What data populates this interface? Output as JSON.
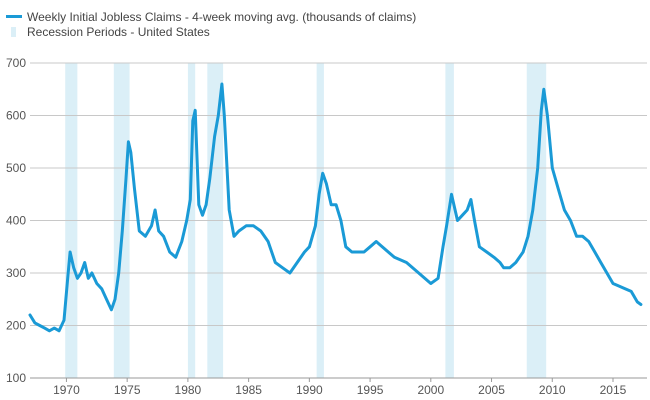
{
  "chart_data": {
    "type": "line",
    "title": "",
    "xlabel": "",
    "ylabel": "",
    "xlim": [
      1967,
      2017.8
    ],
    "ylim": [
      100,
      700
    ],
    "x_ticks": [
      1970,
      1975,
      1980,
      1985,
      1990,
      1995,
      2000,
      2005,
      2010,
      2015
    ],
    "x_tick_labels": [
      "1970",
      "1975",
      "1980",
      "1985",
      "1990",
      "1995",
      "2000",
      "2005",
      "2010",
      "2015"
    ],
    "y_ticks": [
      100,
      200,
      300,
      400,
      500,
      600,
      700
    ],
    "y_tick_labels": [
      "100",
      "200",
      "300",
      "400",
      "500",
      "600",
      "700"
    ],
    "grid": "horizontal",
    "legend_position": "top-left",
    "legend": [
      {
        "label": "Weekly Initial Jobless Claims - 4-week moving avg. (thousands of claims)",
        "kind": "line",
        "color": "#1a9ad6"
      },
      {
        "label": "Recession Periods - United States",
        "kind": "area",
        "color": "#dbeff7"
      }
    ],
    "recessions": [
      {
        "start": 1969.9,
        "end": 1970.9
      },
      {
        "start": 1973.9,
        "end": 1975.2
      },
      {
        "start": 1980.0,
        "end": 1980.6
      },
      {
        "start": 1981.6,
        "end": 1982.9
      },
      {
        "start": 1990.6,
        "end": 1991.2
      },
      {
        "start": 2001.2,
        "end": 2001.9
      },
      {
        "start": 2007.9,
        "end": 2009.5
      }
    ],
    "series": [
      {
        "name": "Weekly Initial Jobless Claims - 4-week moving avg. (thousands of claims)",
        "color": "#1a9ad6",
        "x": [
          1967.0,
          1967.4,
          1967.8,
          1968.2,
          1968.6,
          1969.0,
          1969.4,
          1969.8,
          1970.1,
          1970.3,
          1970.6,
          1970.9,
          1971.2,
          1971.5,
          1971.8,
          1972.1,
          1972.5,
          1972.9,
          1973.3,
          1973.7,
          1974.0,
          1974.3,
          1974.6,
          1974.9,
          1975.1,
          1975.3,
          1975.6,
          1976.0,
          1976.5,
          1977.0,
          1977.3,
          1977.6,
          1978.0,
          1978.5,
          1979.0,
          1979.5,
          1979.9,
          1980.2,
          1980.4,
          1980.6,
          1980.9,
          1981.2,
          1981.5,
          1981.8,
          1982.2,
          1982.5,
          1982.8,
          1983.0,
          1983.4,
          1983.8,
          1984.2,
          1984.8,
          1985.4,
          1986.0,
          1986.6,
          1987.2,
          1987.8,
          1988.4,
          1989.0,
          1989.6,
          1990.0,
          1990.5,
          1990.8,
          1991.1,
          1991.4,
          1991.8,
          1992.2,
          1992.6,
          1993.0,
          1993.5,
          1994.0,
          1994.5,
          1995.0,
          1995.5,
          1996.0,
          1997.0,
          1998.0,
          1999.0,
          2000.0,
          2000.6,
          2001.0,
          2001.3,
          2001.7,
          2001.9,
          2002.2,
          2002.6,
          2003.0,
          2003.3,
          2003.6,
          2004.0,
          2004.6,
          2005.2,
          2005.7,
          2006.0,
          2006.5,
          2007.0,
          2007.6,
          2008.0,
          2008.4,
          2008.8,
          2009.1,
          2009.3,
          2009.6,
          2010.0,
          2010.5,
          2011.0,
          2011.5,
          2012.0,
          2012.5,
          2013.0,
          2013.5,
          2014.0,
          2014.5,
          2015.0,
          2015.5,
          2016.0,
          2016.5,
          2017.0,
          2017.3
        ],
        "values": [
          220,
          205,
          200,
          195,
          190,
          195,
          190,
          210,
          290,
          340,
          310,
          290,
          300,
          320,
          290,
          300,
          280,
          270,
          250,
          230,
          250,
          300,
          380,
          480,
          550,
          530,
          460,
          380,
          370,
          390,
          420,
          380,
          370,
          340,
          330,
          360,
          400,
          440,
          590,
          610,
          430,
          410,
          430,
          480,
          560,
          600,
          660,
          600,
          420,
          370,
          380,
          390,
          390,
          380,
          360,
          320,
          310,
          300,
          320,
          340,
          350,
          390,
          450,
          490,
          470,
          430,
          430,
          400,
          350,
          340,
          340,
          340,
          350,
          360,
          350,
          330,
          320,
          300,
          280,
          290,
          350,
          390,
          450,
          430,
          400,
          410,
          420,
          440,
          400,
          350,
          340,
          330,
          320,
          310,
          310,
          320,
          340,
          370,
          420,
          500,
          610,
          650,
          600,
          500,
          460,
          420,
          400,
          370,
          370,
          360,
          340,
          320,
          300,
          280,
          275,
          270,
          265,
          245,
          240
        ]
      }
    ]
  }
}
